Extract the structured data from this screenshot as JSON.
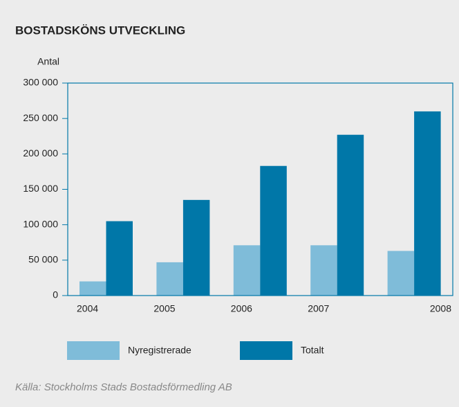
{
  "chart_data": {
    "type": "bar",
    "title": "BOSTADSKÖNS UTVECKLING",
    "y_label": "Antal",
    "categories": [
      "2004",
      "2005",
      "2006",
      "2007",
      "2008"
    ],
    "series": [
      {
        "name": "Nyregistrerade",
        "color": "#7fbcd9",
        "values": [
          20000,
          47000,
          71000,
          71000,
          63000
        ]
      },
      {
        "name": "Totalt",
        "color": "#0077a8",
        "values": [
          105000,
          135000,
          183000,
          227000,
          260000
        ]
      }
    ],
    "ylim": [
      0,
      300000
    ],
    "yticks": [
      0,
      {
        "value": 50000,
        "label": "50 000"
      },
      {
        "value": 100000,
        "label": "100 000"
      },
      {
        "value": 150000,
        "label": "150 000"
      },
      {
        "value": 200000,
        "label": "200 000"
      },
      {
        "value": 250000,
        "label": "250 000"
      },
      {
        "value": 300000,
        "label": "300 000"
      }
    ],
    "source": "Källa: Stockholms Stads Bostadsförmedling AB"
  }
}
